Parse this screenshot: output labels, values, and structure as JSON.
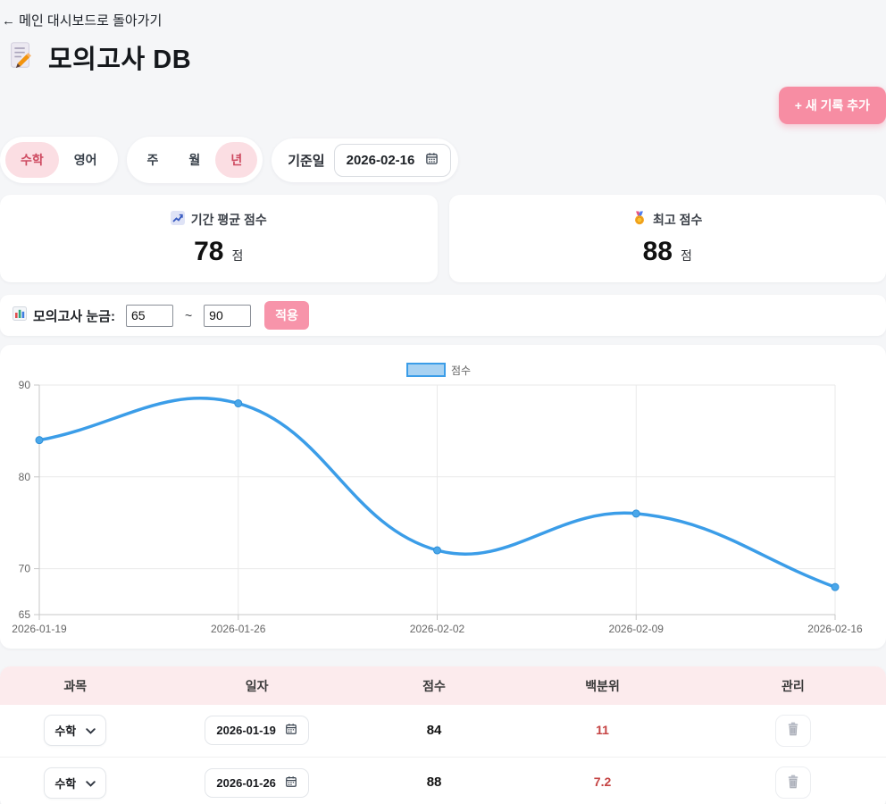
{
  "page": {
    "back_link": "← 메인 대시보드로 돌아가기",
    "title": "모의고사 DB",
    "add_button_label": "+ 새 기록 추가"
  },
  "filters": {
    "subject_tabs": [
      {
        "label": "수학",
        "active": true
      },
      {
        "label": "영어",
        "active": false
      }
    ],
    "period_tabs": [
      {
        "label": "주",
        "active": false
      },
      {
        "label": "월",
        "active": false
      },
      {
        "label": "년",
        "active": true
      }
    ],
    "base_date_label": "기준일",
    "base_date_value": "2026-02-16"
  },
  "stats": [
    {
      "icon": "chart-increasing-icon",
      "label": "기간 평균 점수",
      "value": "78",
      "unit": "점"
    },
    {
      "icon": "medal-icon",
      "label": "최고 점수",
      "value": "88",
      "unit": "점"
    }
  ],
  "scale": {
    "icon": "bar-chart-icon",
    "label": "모의고사 눈금:",
    "min_value": "65",
    "max_value": "90",
    "tilde": "~",
    "apply_label": "적용"
  },
  "chart_data": {
    "type": "line",
    "title": "",
    "x": [
      "2026-01-19",
      "2026-01-26",
      "2026-02-02",
      "2026-02-09",
      "2026-02-16"
    ],
    "series": [
      {
        "name": "점수",
        "values": [
          84,
          88,
          72,
          76,
          68
        ]
      }
    ],
    "ylim": [
      65,
      90
    ],
    "yticks": [
      65,
      70,
      80,
      90
    ],
    "grid": true,
    "legend_position": "top",
    "line_color": "#3b9de8",
    "point_color": "#4aa7ea",
    "legend_fill": "#a8d2f2",
    "axis_color": "#c7c7c7",
    "grid_color": "#e9e9e9",
    "tick_text_color": "#666666"
  },
  "table": {
    "headers": [
      "과목",
      "일자",
      "점수",
      "백분위",
      "관리"
    ],
    "rows": [
      {
        "subject": "수학",
        "date": "2026-01-19",
        "score": "84",
        "percentile": "11"
      },
      {
        "subject": "수학",
        "date": "2026-01-26",
        "score": "88",
        "percentile": "7.2"
      }
    ]
  },
  "colors": {
    "accent_pink": "#f78da3",
    "active_tab_bg": "#fbdee3",
    "active_tab_text": "#ce4a60",
    "table_header_bg": "#fcebed",
    "percentile_red": "#c54343",
    "page_bg": "#f5f6f8"
  }
}
